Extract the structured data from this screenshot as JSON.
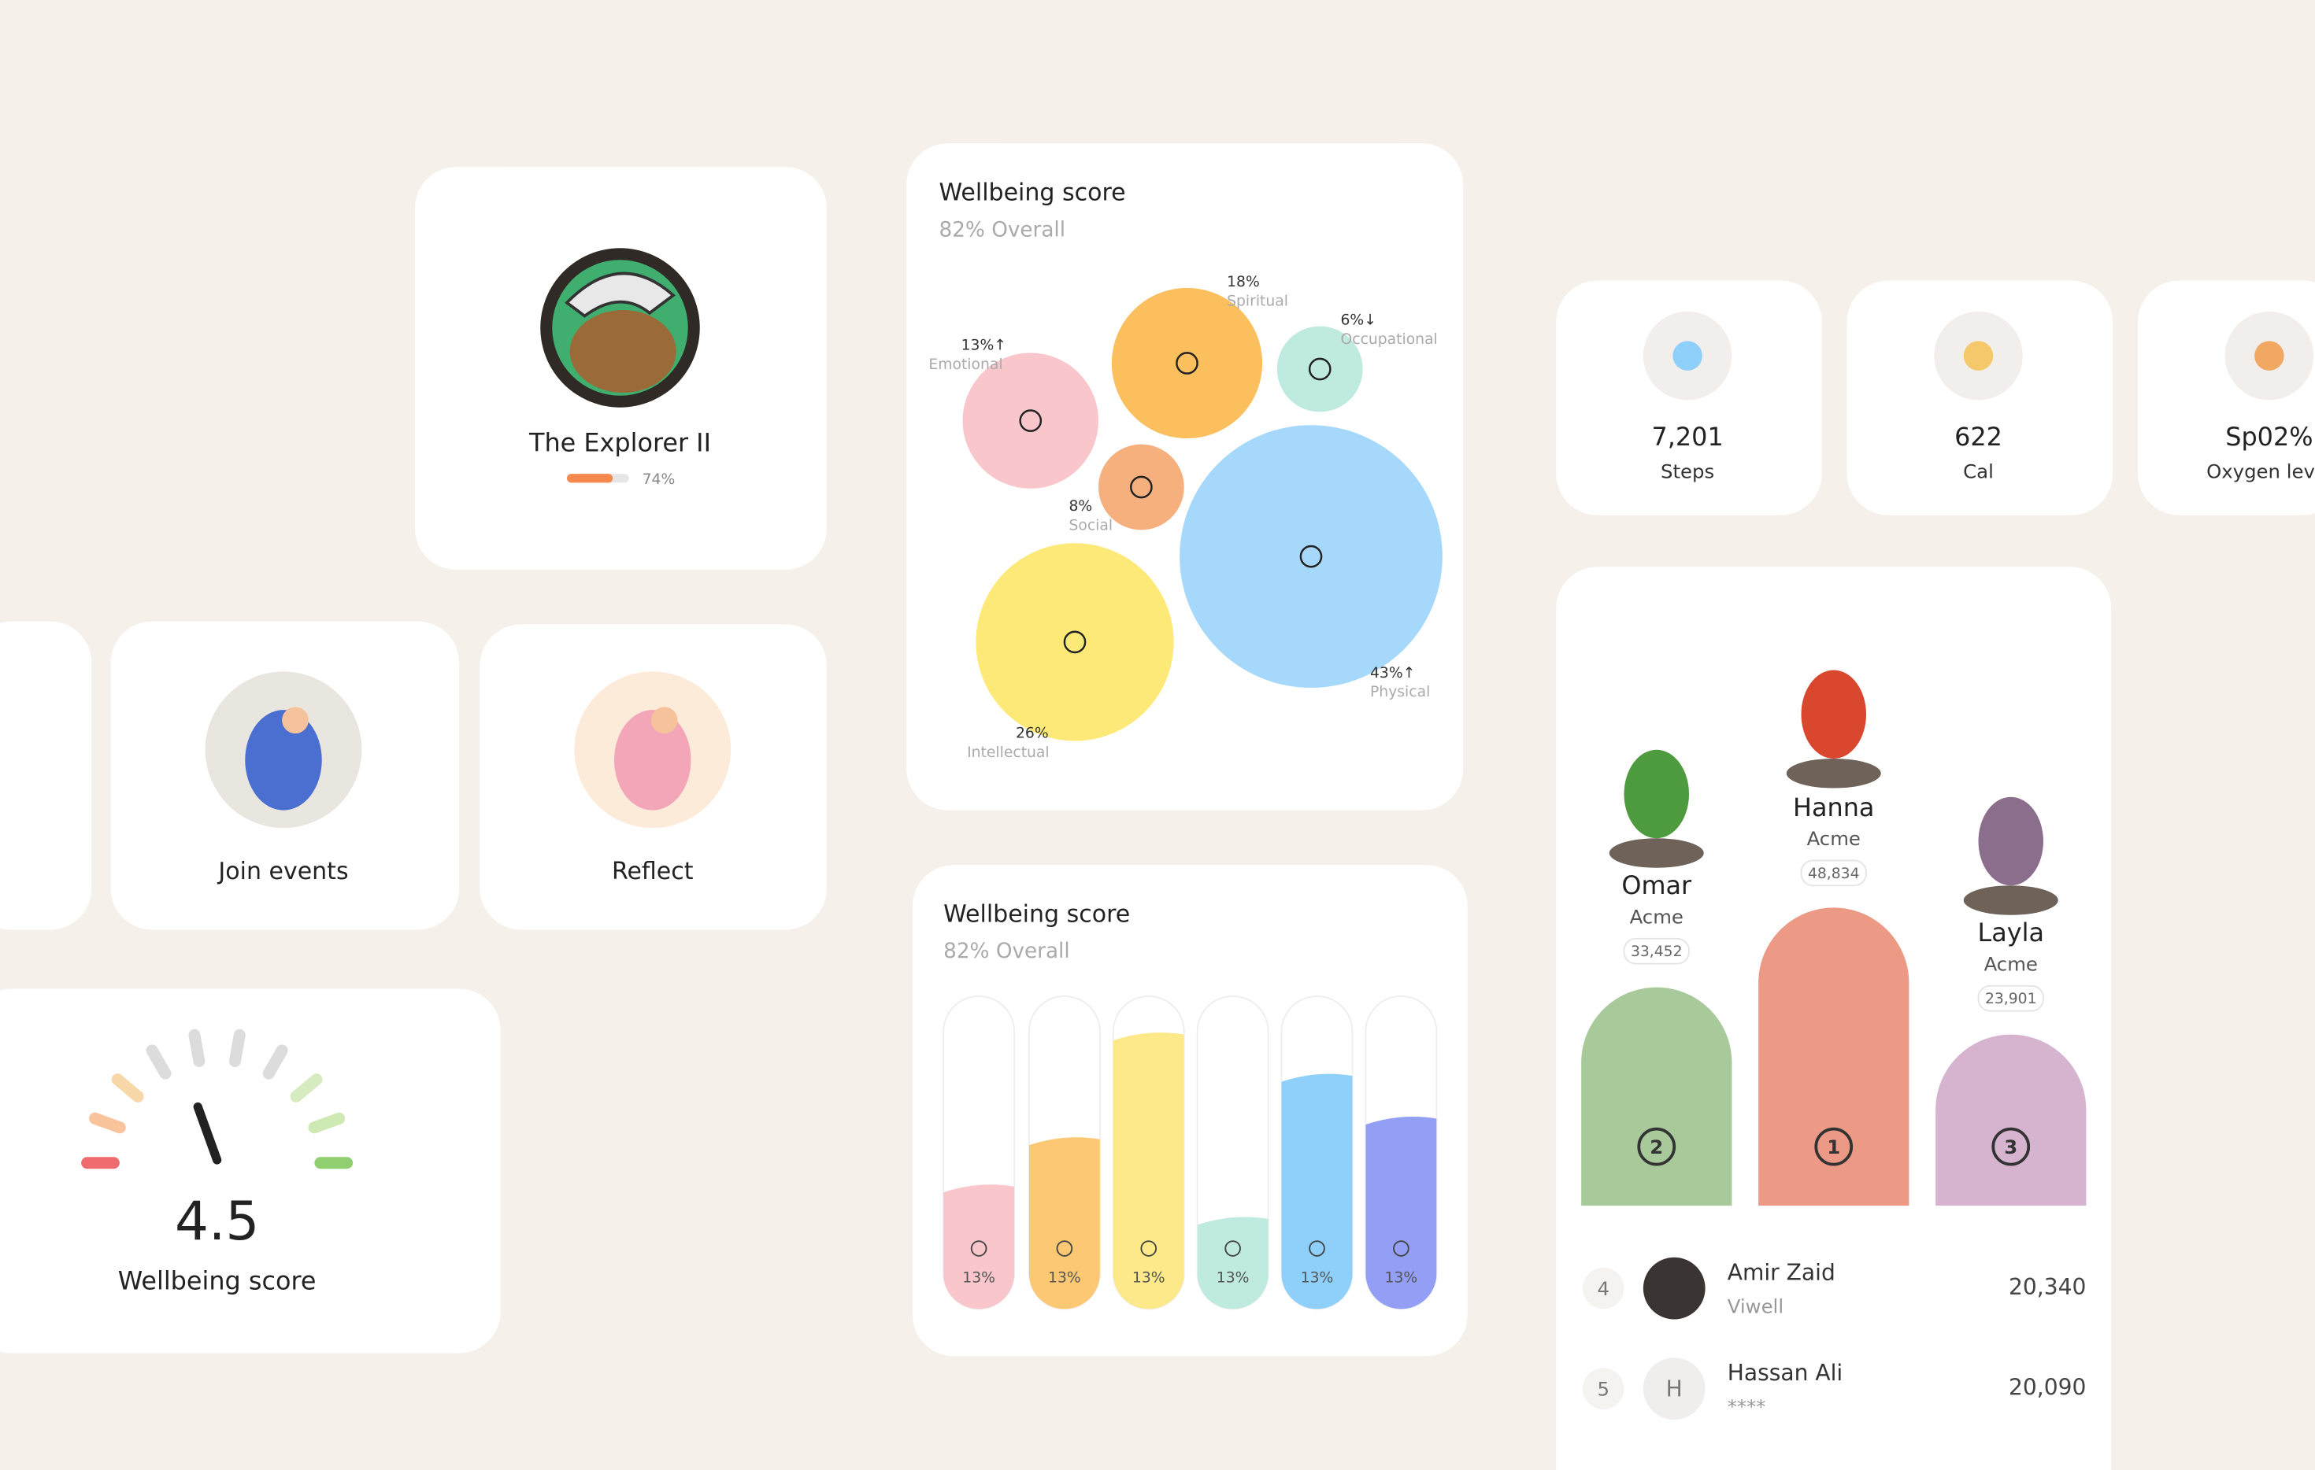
{
  "badge": {
    "title": "The Explorer II",
    "progress": "74%"
  },
  "bubble_card": {
    "title": "Wellbeing score",
    "subtitle": "82% Overall",
    "bubbles": [
      {
        "value": "13%↑",
        "name": "Emotional"
      },
      {
        "value": "18%",
        "name": "Spiritual"
      },
      {
        "value": "6%↓",
        "name": "Occupational"
      },
      {
        "value": "8%",
        "name": "Social"
      },
      {
        "value": "43%↑",
        "name": "Physical"
      },
      {
        "value": "26%",
        "name": "Intellectual"
      }
    ]
  },
  "bar_card": {
    "title": "Wellbeing score",
    "subtitle": "82% Overall",
    "bars": [
      "13%",
      "13%",
      "13%",
      "13%",
      "13%",
      "13%"
    ]
  },
  "stats": [
    {
      "value": "7,201",
      "label": "Steps"
    },
    {
      "value": "622",
      "label": "Cal"
    },
    {
      "value": "Sp02%",
      "label": "Oxygen level"
    }
  ],
  "activities": [
    "Join events",
    "Reflect"
  ],
  "gauge": {
    "value": "4.5",
    "label": "Wellbeing score"
  },
  "leaderboard": {
    "podium": [
      {
        "name": "Omar",
        "company": "Acme",
        "score": "33,452",
        "place": "2"
      },
      {
        "name": "Hanna",
        "company": "Acme",
        "score": "48,834",
        "place": "1"
      },
      {
        "name": "Layla",
        "company": "Acme",
        "score": "23,901",
        "place": "3"
      }
    ],
    "rows": [
      {
        "rank": "4",
        "initial": "",
        "name": "Amir Zaid",
        "company": "Viwell",
        "score": "20,340"
      },
      {
        "rank": "5",
        "initial": "H",
        "name": "Hassan Ali",
        "company": "****",
        "score": "20,090"
      }
    ]
  }
}
